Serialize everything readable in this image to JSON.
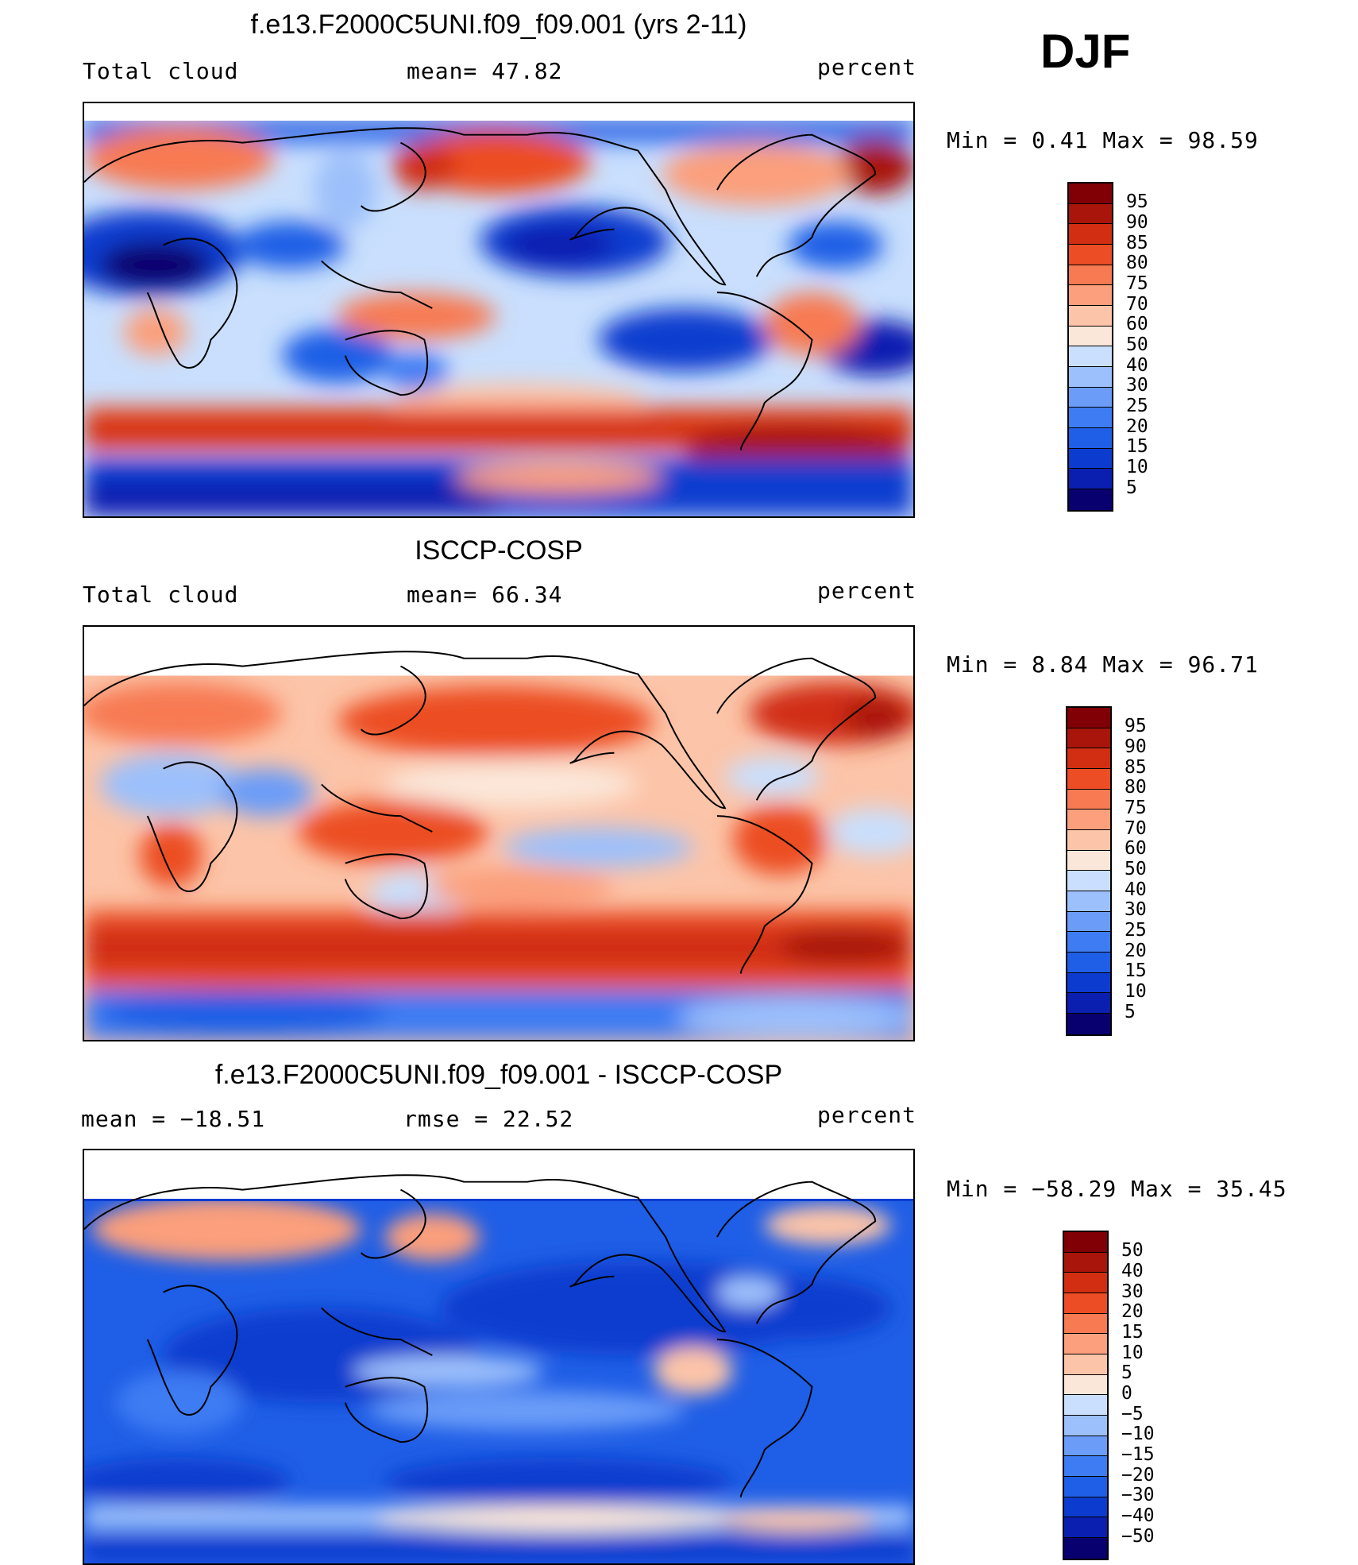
{
  "season": "DJF",
  "colors": {
    "ramp": [
      "#08006e",
      "#0a1fb0",
      "#0c3ccf",
      "#1f5ee6",
      "#3d7cf3",
      "#6a9cf8",
      "#9cc0fb",
      "#c9dffd",
      "#fbe7d9",
      "#fcc4a8",
      "#fb9f7c",
      "#f77a52",
      "#ec4d24",
      "#d12e12",
      "#a9150a",
      "#800006"
    ]
  },
  "panels": [
    {
      "title": "f.e13.F2000C5UNI.f09_f09.001 (yrs 2-11)",
      "left": "Total cloud",
      "center": "mean=   47.82",
      "right": "percent",
      "minmax": "Min  =    0.41  Max  =   98.59",
      "min": 0.41,
      "max": 98.59,
      "colorbar_levels": [
        "95",
        "90",
        "85",
        "80",
        "75",
        "70",
        "60",
        "50",
        "40",
        "30",
        "25",
        "20",
        "15",
        "10",
        "5"
      ]
    },
    {
      "title": "ISCCP-COSP",
      "left": "Total cloud",
      "center": "mean=   66.34",
      "right": "percent",
      "minmax": "Min  =    8.84  Max  =   96.71",
      "min": 8.84,
      "max": 96.71,
      "colorbar_levels": [
        "95",
        "90",
        "85",
        "80",
        "75",
        "70",
        "60",
        "50",
        "40",
        "30",
        "25",
        "20",
        "15",
        "10",
        "5"
      ]
    },
    {
      "title": "f.e13.F2000C5UNI.f09_f09.001 - ISCCP-COSP",
      "left": "mean  =  −18.51",
      "center": "rmse  =    22.52",
      "right": "percent",
      "minmax": "Min  =  −58.29  Max  =    35.45",
      "min": -58.29,
      "max": 35.45,
      "colorbar_levels": [
        "50",
        "40",
        "30",
        "20",
        "15",
        "10",
        "5",
        "0",
        "−5",
        "−10",
        "−15",
        "−20",
        "−30",
        "−40",
        "−50"
      ]
    }
  ]
}
